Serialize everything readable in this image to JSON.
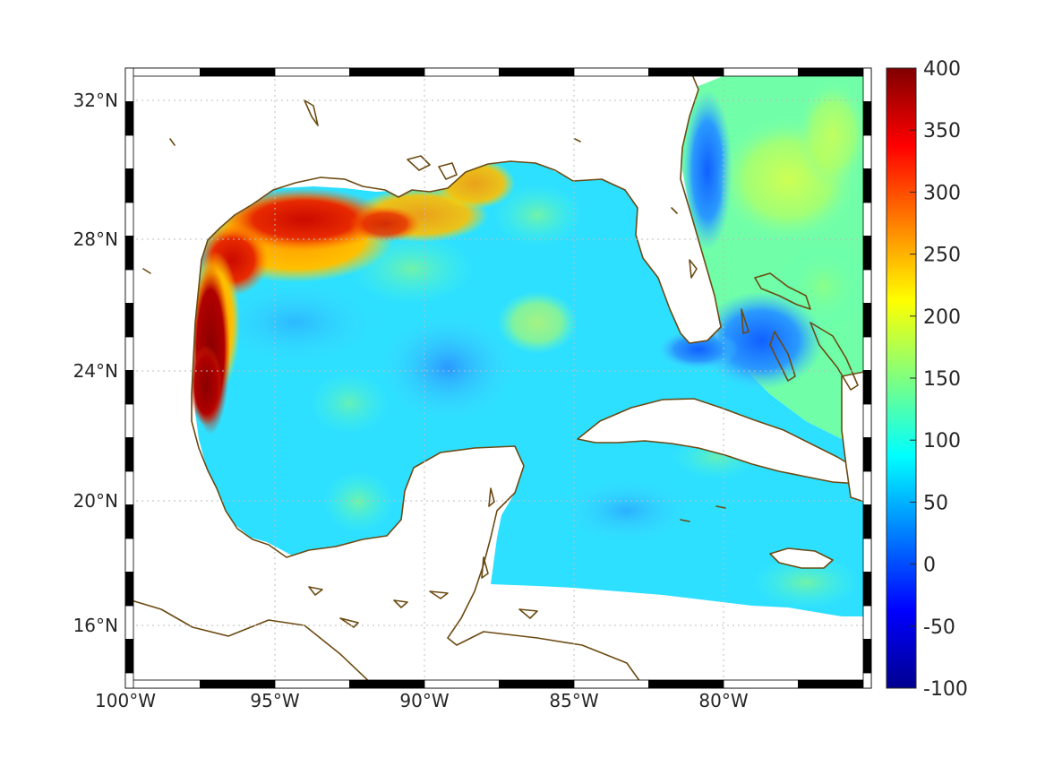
{
  "map": {
    "extent": {
      "lon_min": -100,
      "lon_max": -75,
      "lat_min": 14.2,
      "lat_max": 33
    },
    "lon_ticks": [
      {
        "value": -100,
        "label": "100°W"
      },
      {
        "value": -95,
        "label": "95°W"
      },
      {
        "value": -90,
        "label": "90°W"
      },
      {
        "value": -85,
        "label": "85°W"
      },
      {
        "value": -80,
        "label": "80°W"
      }
    ],
    "lat_ticks": [
      {
        "value": 32,
        "label": "32°N"
      },
      {
        "value": 28,
        "label": "28°N"
      },
      {
        "value": 24,
        "label": "24°N"
      },
      {
        "value": 20,
        "label": "20°N"
      },
      {
        "value": 16,
        "label": "16°N"
      }
    ],
    "grid": true,
    "colormap": "jet",
    "coastline_color": "#6b4a12"
  },
  "colorbar": {
    "min": -100,
    "max": 400,
    "ticks": [
      "400",
      "350",
      "300",
      "250",
      "200",
      "150",
      "100",
      "50",
      "0",
      "-50",
      "-100"
    ]
  }
}
